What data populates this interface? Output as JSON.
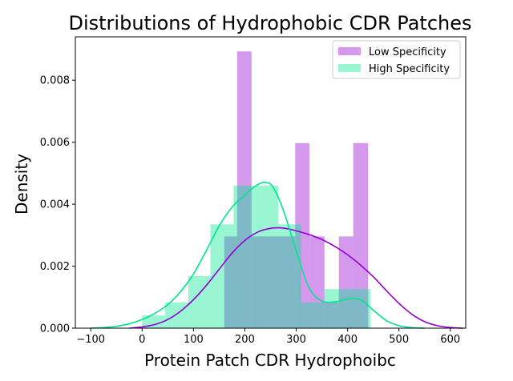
{
  "chart_data": {
    "type": "histogram+kde",
    "title": "Distributions of Hydrophobic CDR Patches",
    "xlabel": "Protein Patch CDR Hydrophoibc",
    "ylabel": "Density",
    "xlim": [
      -130,
      630
    ],
    "ylim": [
      0,
      0.0094
    ],
    "xticks": [
      -100,
      0,
      100,
      200,
      300,
      400,
      500,
      600
    ],
    "yticks": [
      0.0,
      0.002,
      0.004,
      0.006,
      0.008
    ],
    "ytick_labels": [
      "0.000",
      "0.002",
      "0.004",
      "0.006",
      "0.008"
    ],
    "legend_position": "upper right",
    "series": [
      {
        "name": "Low Specificity",
        "color": "#9400d3",
        "bins": [
          {
            "x0": 160,
            "x1": 185,
            "density": 0.00296
          },
          {
            "x0": 185,
            "x1": 213,
            "density": 0.00893
          },
          {
            "x0": 213,
            "x1": 243,
            "density": 0.00296
          },
          {
            "x0": 243,
            "x1": 270,
            "density": 0.00296
          },
          {
            "x0": 270,
            "x1": 298,
            "density": 0.00296
          },
          {
            "x0": 298,
            "x1": 326,
            "density": 0.00597
          },
          {
            "x0": 326,
            "x1": 355,
            "density": 0.00296
          },
          {
            "x0": 355,
            "x1": 383,
            "density": 0.00083
          },
          {
            "x0": 383,
            "x1": 411,
            "density": 0.00296
          },
          {
            "x0": 411,
            "x1": 440,
            "density": 0.00597
          }
        ],
        "kde": {
          "x": [
            -25,
            0,
            25,
            50,
            75,
            100,
            125,
            150,
            175,
            200,
            225,
            250,
            275,
            300,
            325,
            350,
            375,
            400,
            425,
            450,
            475,
            500,
            525,
            550,
            575,
            600,
            625
          ],
          "y": [
            0.0,
            4e-05,
            0.00012,
            0.00028,
            0.00055,
            0.00092,
            0.00138,
            0.0019,
            0.00242,
            0.00283,
            0.0031,
            0.00322,
            0.00323,
            0.00314,
            0.00302,
            0.00286,
            0.00264,
            0.00237,
            0.00204,
            0.00166,
            0.00122,
            0.0008,
            0.00045,
            0.00021,
            8e-05,
            2e-05,
            0.0
          ]
        }
      },
      {
        "name": "High Specificity",
        "color": "#00e58f",
        "bins": [
          {
            "x0": 0,
            "x1": 45,
            "density": 0.00041
          },
          {
            "x0": 45,
            "x1": 90,
            "density": 0.00083
          },
          {
            "x0": 90,
            "x1": 133,
            "density": 0.00168
          },
          {
            "x0": 133,
            "x1": 178,
            "density": 0.00335
          },
          {
            "x0": 178,
            "x1": 222,
            "density": 0.0046
          },
          {
            "x0": 222,
            "x1": 265,
            "density": 0.0046
          },
          {
            "x0": 265,
            "x1": 310,
            "density": 0.00335
          },
          {
            "x0": 310,
            "x1": 355,
            "density": 0.00083
          },
          {
            "x0": 355,
            "x1": 400,
            "density": 0.00126
          },
          {
            "x0": 400,
            "x1": 445,
            "density": 0.00126
          }
        ],
        "kde": {
          "x": [
            -100,
            -75,
            -50,
            -25,
            0,
            25,
            50,
            75,
            100,
            125,
            150,
            175,
            200,
            225,
            240,
            255,
            275,
            300,
            325,
            350,
            375,
            400,
            425,
            450,
            475,
            500,
            525,
            550
          ],
          "y": [
            0.0,
            2e-05,
            6e-05,
            0.00014,
            0.00028,
            0.00048,
            0.00076,
            0.00118,
            0.00175,
            0.0025,
            0.0033,
            0.0039,
            0.0043,
            0.00463,
            0.0047,
            0.00455,
            0.0038,
            0.0025,
            0.0013,
            0.00088,
            0.00085,
            0.00094,
            0.00092,
            0.00058,
            0.00025,
            8e-05,
            2e-05,
            0.0
          ]
        }
      }
    ]
  }
}
